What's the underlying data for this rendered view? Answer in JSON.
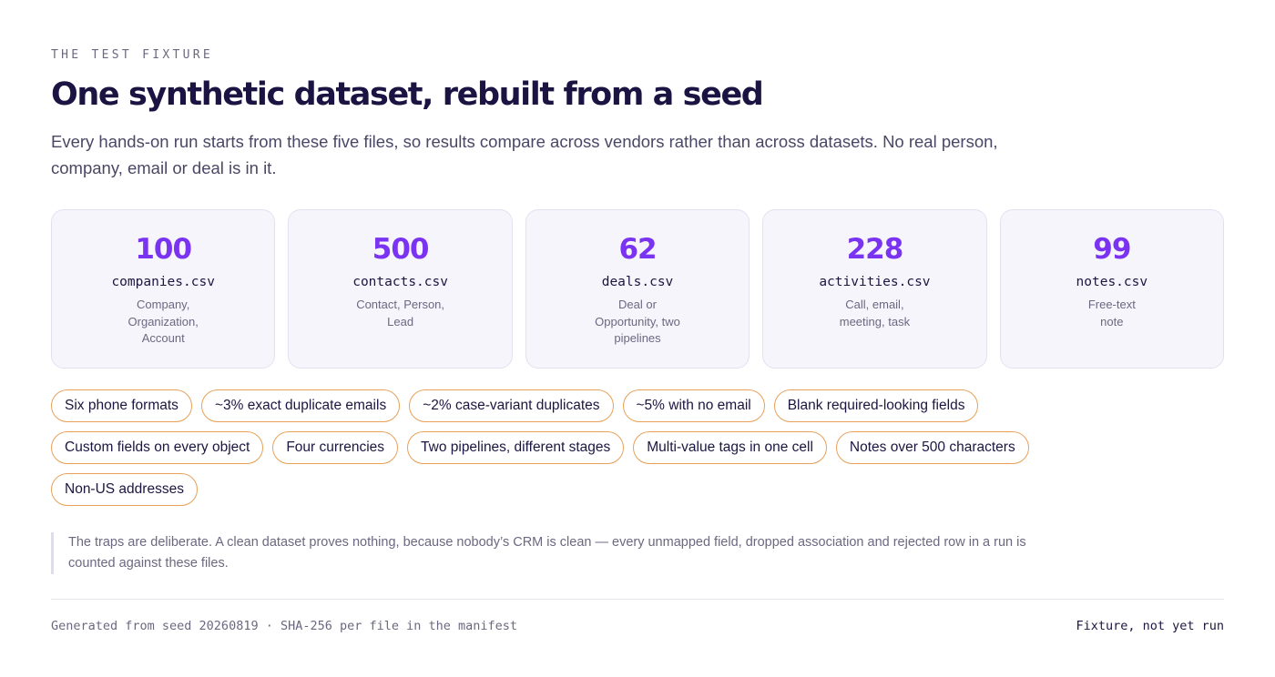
{
  "eyebrow": "THE TEST FIXTURE",
  "title": "One synthetic dataset, rebuilt from a seed",
  "lede": "Every hands-on run starts from these five files, so results compare across vendors rather than across datasets. No real person, company, email or deal is in it.",
  "files": [
    {
      "count": "100",
      "name": "companies.csv",
      "desc": "Company, Organization, Account"
    },
    {
      "count": "500",
      "name": "contacts.csv",
      "desc": "Contact, Person, Lead"
    },
    {
      "count": "62",
      "name": "deals.csv",
      "desc": "Deal or Opportunity, two pipelines"
    },
    {
      "count": "228",
      "name": "activities.csv",
      "desc": "Call, email, meeting, task"
    },
    {
      "count": "99",
      "name": "notes.csv",
      "desc": "Free-text note"
    }
  ],
  "traps": [
    "Six phone formats",
    "~3% exact duplicate emails",
    "~2% case-variant duplicates",
    "~5% with no email",
    "Blank required-looking fields",
    "Custom fields on every object",
    "Four currencies",
    "Two pipelines, different stages",
    "Multi-value tags in one cell",
    "Notes over 500 characters",
    "Non-US addresses"
  ],
  "note": "The traps are deliberate. A clean dataset proves nothing, because nobody’s CRM is clean — every unmapped field, dropped association and rejected row in a run is counted against these files.",
  "footer": {
    "left": "Generated from seed 20260819 · SHA-256 per file in the manifest",
    "right": "Fixture, not yet run"
  },
  "colors": {
    "accent": "#7a33f0",
    "chip_border": "#e8a05a",
    "card_bg": "#f6f5fc",
    "title": "#1b1442"
  }
}
